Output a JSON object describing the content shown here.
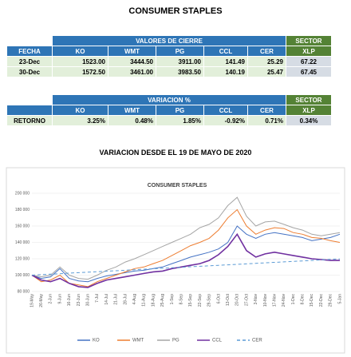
{
  "header": {
    "title": "CONSUMER STAPLES"
  },
  "table1": {
    "group_header": "VALORES DE CIERRE",
    "sector": "SECTOR",
    "columns": [
      "FECHA",
      "KO",
      "WMT",
      "PG",
      "CCL",
      "CER",
      "XLP"
    ],
    "rows": [
      [
        "23-Dec",
        "1523.00",
        "3444.50",
        "3911.00",
        "141.49",
        "25.29",
        "67.22"
      ],
      [
        "30-Dec",
        "1572.50",
        "3461.00",
        "3983.50",
        "140.19",
        "25.47",
        "67.45"
      ]
    ]
  },
  "table2": {
    "group_header": "VARIACION %",
    "sector": "SECTOR",
    "columns": [
      "KO",
      "WMT",
      "PG",
      "CCL",
      "CER",
      "XLP"
    ],
    "rows": [
      [
        "RETORNO",
        "3.25%",
        "0.48%",
        "1.85%",
        "-0.92%",
        "0.71%",
        "0.34%"
      ]
    ]
  },
  "section_title": "VARIACION DESDE EL 19 DE MAYO DE 2020",
  "chart_data": {
    "type": "line",
    "title": "CONSUMER STAPLES",
    "x": [
      "19-May",
      "26-May",
      "2-Jun",
      "9-Jun",
      "16-Jun",
      "23-Jun",
      "30-Jun",
      "7-Jul",
      "14-Jul",
      "21-Jul",
      "28-Jul",
      "4-Aug",
      "11-Aug",
      "18-Aug",
      "25-Aug",
      "1-Sep",
      "8-Sep",
      "15-Sep",
      "22-Sep",
      "29-Sep",
      "6-Oct",
      "13-Oct",
      "20-Oct",
      "27-Oct",
      "3-Nov",
      "10-Nov",
      "17-Nov",
      "24-Nov",
      "1-Dec",
      "8-Dec",
      "15-Dec",
      "22-Dec",
      "29-Dec",
      "5-Jan"
    ],
    "ylim": [
      80000,
      200000
    ],
    "yticks": [
      {
        "value": 80000,
        "label": "80 000"
      },
      {
        "value": 100000,
        "label": "100 000"
      },
      {
        "value": 120000,
        "label": "120 000"
      },
      {
        "value": 140000,
        "label": "140 000"
      },
      {
        "value": 160000,
        "label": "160 000"
      },
      {
        "value": 180000,
        "label": "180 000"
      },
      {
        "value": 200000,
        "label": "200 000"
      }
    ],
    "grid": true,
    "legend": "bottom",
    "series": [
      {
        "name": "KO",
        "color": "#4472c4",
        "values": [
          100000,
          96000,
          98000,
          108000,
          96000,
          93000,
          92000,
          96000,
          99000,
          101000,
          103000,
          105000,
          106000,
          108000,
          110000,
          114000,
          118000,
          122000,
          125000,
          128000,
          132000,
          140000,
          160000,
          150000,
          145000,
          150000,
          152000,
          150000,
          148000,
          146000,
          142000,
          144000,
          146000,
          150000
        ]
      },
      {
        "name": "WMT",
        "color": "#ed7d31",
        "values": [
          100000,
          92000,
          94000,
          100000,
          90000,
          88000,
          86000,
          92000,
          96000,
          100000,
          104000,
          108000,
          110000,
          114000,
          118000,
          124000,
          130000,
          136000,
          140000,
          145000,
          155000,
          170000,
          180000,
          160000,
          150000,
          155000,
          158000,
          157000,
          152000,
          150000,
          146000,
          145000,
          142000,
          140000
        ]
      },
      {
        "name": "PG",
        "color": "#a5a5a5",
        "values": [
          100000,
          98000,
          100000,
          110000,
          100000,
          96000,
          95000,
          100000,
          106000,
          110000,
          116000,
          120000,
          125000,
          130000,
          135000,
          140000,
          145000,
          150000,
          158000,
          162000,
          170000,
          185000,
          195000,
          172000,
          160000,
          165000,
          166000,
          162000,
          158000,
          155000,
          150000,
          148000,
          150000,
          152000
        ]
      },
      {
        "name": "CCL",
        "color": "#7030a0",
        "values": [
          100000,
          94000,
          92000,
          96000,
          90000,
          86000,
          85000,
          90000,
          94000,
          96000,
          98000,
          100000,
          102000,
          104000,
          105000,
          108000,
          110000,
          112000,
          114000,
          118000,
          125000,
          135000,
          150000,
          130000,
          122000,
          126000,
          128000,
          126000,
          124000,
          122000,
          120000,
          119000,
          118000,
          118000
        ]
      },
      {
        "name": "CER",
        "color": "#5b9bd5",
        "dashed": true,
        "values": [
          100000,
          100600,
          101200,
          101800,
          102400,
          103000,
          103600,
          104200,
          104800,
          105400,
          106000,
          106600,
          107200,
          107800,
          108400,
          109000,
          109600,
          110200,
          110800,
          111400,
          112000,
          112600,
          113200,
          113800,
          114400,
          115000,
          115600,
          116200,
          116800,
          117400,
          118000,
          118600,
          119200,
          119800
        ]
      }
    ]
  }
}
